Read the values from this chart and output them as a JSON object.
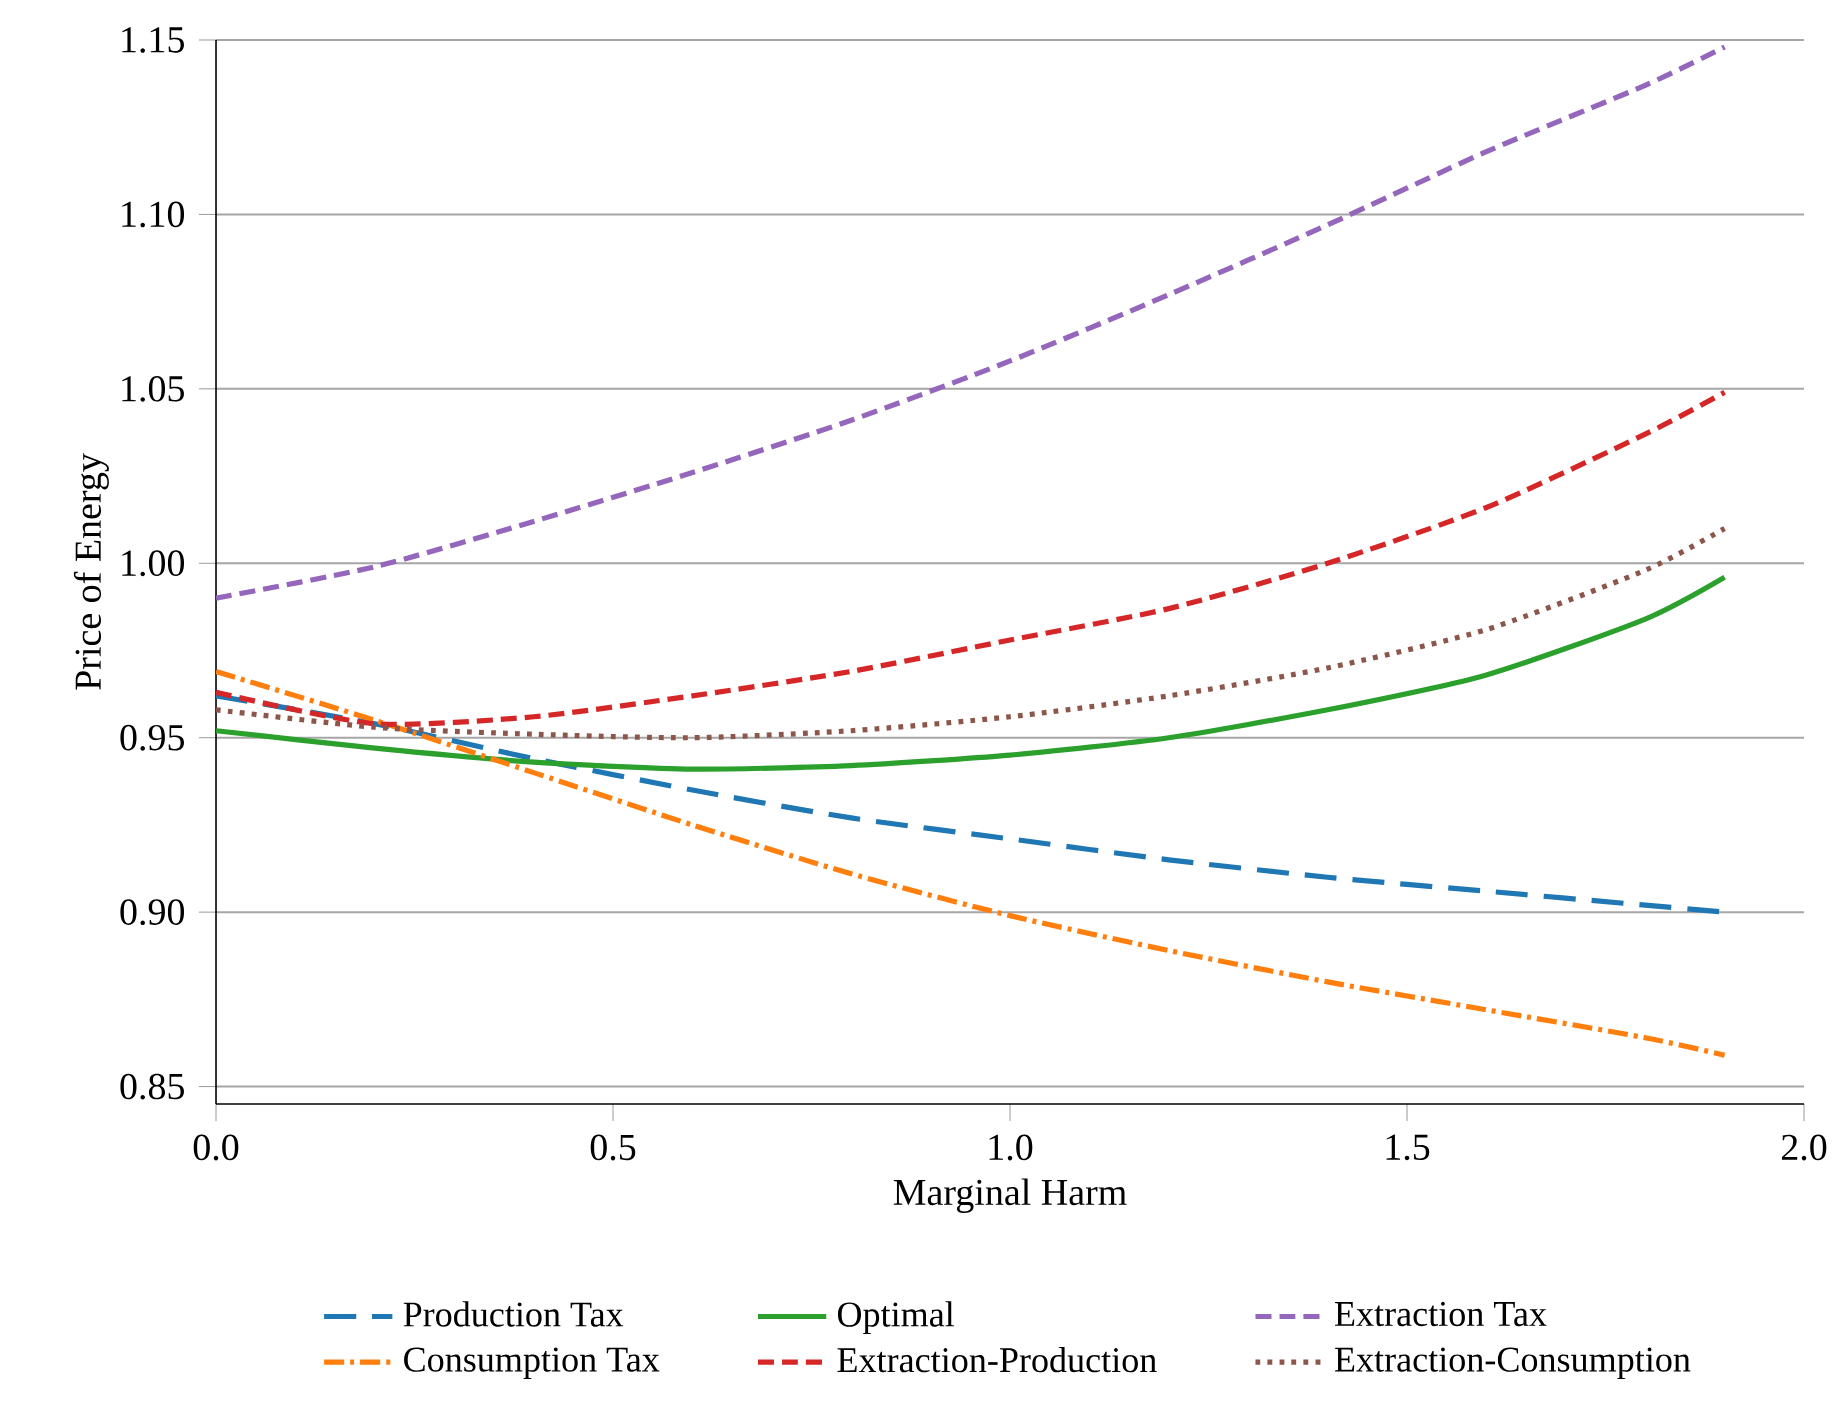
{
  "chart_data": {
    "type": "line",
    "xlabel": "Marginal Harm",
    "ylabel": "Price of Energy",
    "xlim": [
      0,
      2
    ],
    "ylim": [
      0.845,
      1.15
    ],
    "xticks": [
      {
        "value": 0,
        "label": "0.0"
      },
      0.5,
      {
        "value": 1,
        "label": "1.0"
      },
      1.5,
      {
        "value": 2,
        "label": "2.0"
      }
    ],
    "yticks": [
      0.85,
      {
        "value": 0.9,
        "label": "0.90"
      },
      0.95,
      {
        "value": 1.0,
        "label": "1.00"
      },
      1.05,
      {
        "value": 1.1,
        "label": "1.10"
      },
      1.15
    ],
    "grid": "y",
    "legend": "bottom",
    "marker": "none",
    "x": [
      0,
      0.2,
      0.4,
      0.6,
      0.8,
      1.0,
      1.2,
      1.4,
      1.6,
      1.8,
      1.9
    ],
    "series": [
      {
        "name": "Production Tax",
        "color": "#1f77b4",
        "line_style": "longdashed",
        "values": [
          0.962,
          0.954,
          0.944,
          0.935,
          0.927,
          0.921,
          0.915,
          0.91,
          0.906,
          0.902,
          0.9
        ]
      },
      {
        "name": "Optimal",
        "color": "#2ca02c",
        "line_style": "solid",
        "values": [
          0.952,
          0.947,
          0.943,
          0.941,
          0.942,
          0.945,
          0.95,
          0.958,
          0.968,
          0.984,
          0.996
        ]
      },
      {
        "name": "Extraction Tax",
        "color": "#9467bd",
        "line_style": "dashed",
        "values": [
          0.99,
          0.999,
          1.012,
          1.026,
          1.041,
          1.058,
          1.077,
          1.097,
          1.118,
          1.137,
          1.148
        ]
      },
      {
        "name": "Consumption Tax",
        "color": "#ff7f0e",
        "line_style": "dashdot",
        "values": [
          0.969,
          0.955,
          0.94,
          0.925,
          0.911,
          0.899,
          0.889,
          0.88,
          0.872,
          0.864,
          0.859
        ]
      },
      {
        "name": "Extraction-Production",
        "color": "#d62728",
        "line_style": "dashed",
        "values": [
          0.963,
          0.954,
          0.956,
          0.962,
          0.969,
          0.978,
          0.987,
          1.0,
          1.016,
          1.037,
          1.049
        ]
      },
      {
        "name": "Extraction-Consumption",
        "color": "#8c564b",
        "line_style": "dotted",
        "values": [
          0.958,
          0.953,
          0.951,
          0.95,
          0.952,
          0.956,
          0.962,
          0.97,
          0.981,
          0.998,
          1.01
        ]
      }
    ]
  }
}
